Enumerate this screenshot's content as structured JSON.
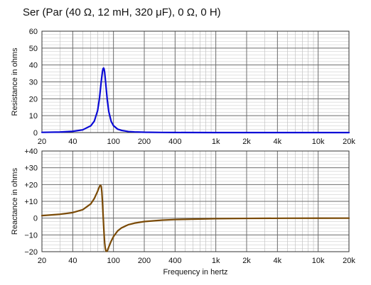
{
  "title": "Ser (Par (40 Ω, 12 mH, 320 μF), 0 Ω, 0 H)",
  "chart_data": [
    {
      "type": "line",
      "title": "Ser (Par (40 Ω, 12 mH, 320 μF), 0 Ω, 0 H)",
      "xlabel": "",
      "ylabel": "Resistance in ohms",
      "xscale": "log",
      "xlim": [
        20,
        20000
      ],
      "ylim": [
        0,
        60
      ],
      "grid": true,
      "x_ticks": [
        20,
        40,
        100,
        200,
        400,
        1000,
        2000,
        4000,
        10000,
        20000
      ],
      "x_tick_labels": [
        "20",
        "40",
        "100",
        "200",
        "400",
        "1k",
        "2k",
        "4k",
        "10k",
        "20k"
      ],
      "y_ticks": [
        0,
        10,
        20,
        30,
        40,
        50,
        60
      ],
      "y_tick_labels": [
        "0",
        "10",
        "20",
        "30",
        "40",
        "50",
        "60"
      ],
      "color": "#0a0ad6",
      "series": [
        {
          "x": [
            20,
            30,
            40,
            50,
            60,
            65,
            70,
            73,
            76,
            78,
            79,
            80,
            81,
            82,
            84,
            87,
            90,
            95,
            100,
            110,
            120,
            140,
            160,
            200,
            300,
            400,
            1000,
            2000,
            5000,
            10000,
            20000
          ],
          "y": [
            0.12,
            0.32,
            0.73,
            1.6,
            4.0,
            6.8,
            13.0,
            20.3,
            30.4,
            36.0,
            37.7,
            38.2,
            37.6,
            35.7,
            29.1,
            19.3,
            12.4,
            6.6,
            4.1,
            2.0,
            1.3,
            0.6,
            0.4,
            0.2,
            0.08,
            0.04,
            0.006,
            0.0015,
            0.0002,
            0.0001,
            0.0
          ]
        }
      ]
    },
    {
      "type": "line",
      "xlabel": "Frequency in hertz",
      "ylabel": "Reactance in ohms",
      "xscale": "log",
      "xlim": [
        20,
        20000
      ],
      "ylim": [
        -20,
        40
      ],
      "grid": true,
      "x_ticks": [
        20,
        40,
        100,
        200,
        400,
        1000,
        2000,
        4000,
        10000,
        20000
      ],
      "x_tick_labels": [
        "20",
        "40",
        "100",
        "200",
        "400",
        "1k",
        "2k",
        "4k",
        "10k",
        "20k"
      ],
      "y_ticks": [
        -20,
        -10,
        0,
        10,
        20,
        30,
        40
      ],
      "y_tick_labels": [
        "−20",
        "−10",
        "0",
        "+10",
        "+20",
        "+30",
        "+40"
      ],
      "color": "#7a4a06",
      "series": [
        {
          "x": [
            20,
            30,
            40,
            50,
            60,
            65,
            70,
            72,
            74,
            75,
            76,
            77,
            78,
            79,
            80,
            81,
            82,
            83,
            84,
            85,
            87,
            90,
            95,
            100,
            110,
            120,
            140,
            160,
            200,
            300,
            400,
            1000,
            2000,
            5000,
            10000,
            20000
          ],
          "y": [
            1.5,
            2.3,
            3.3,
            5.0,
            8.5,
            11.7,
            16.0,
            18.0,
            19.5,
            19.5,
            18.8,
            15.6,
            10.0,
            3.2,
            -3.4,
            -9.8,
            -14.6,
            -17.6,
            -19.2,
            -19.8,
            -19.5,
            -17.2,
            -13.7,
            -11.0,
            -7.6,
            -5.8,
            -3.9,
            -3.0,
            -2.05,
            -1.2,
            -0.85,
            -0.32,
            -0.16,
            -0.063,
            -0.032,
            -0.016
          ]
        }
      ]
    }
  ]
}
